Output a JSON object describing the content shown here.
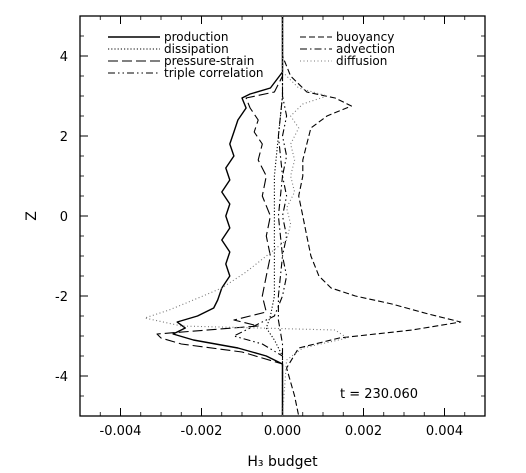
{
  "chart_data": {
    "type": "line",
    "xlabel": "H₃ budget",
    "ylabel": "Z",
    "xlim": [
      -0.005,
      0.005
    ],
    "ylim": [
      -5,
      5
    ],
    "xticks": [
      -0.004,
      -0.002,
      0.0,
      0.002,
      0.004
    ],
    "xtick_labels": [
      "-0.004",
      "-0.002",
      "0.000",
      "0.002",
      "0.004"
    ],
    "yticks": [
      -4,
      -2,
      0,
      2,
      4
    ],
    "ytick_labels": [
      "-4",
      "-2",
      "0",
      "2",
      "4"
    ],
    "annotation": "t = 230.060",
    "legend_placement": "top",
    "series": [
      {
        "name": "production",
        "style": "solid",
        "points": [
          [
            0.0,
            5.0
          ],
          [
            0.0,
            4.2
          ],
          [
            0.0,
            3.6
          ],
          [
            -0.0003,
            3.2
          ],
          [
            -0.0008,
            3.05
          ],
          [
            -0.001,
            2.95
          ],
          [
            -0.0009,
            2.7
          ],
          [
            -0.0011,
            2.4
          ],
          [
            -0.0012,
            2.1
          ],
          [
            -0.0013,
            1.8
          ],
          [
            -0.0012,
            1.5
          ],
          [
            -0.0014,
            1.2
          ],
          [
            -0.0013,
            0.9
          ],
          [
            -0.0015,
            0.6
          ],
          [
            -0.0013,
            0.3
          ],
          [
            -0.0014,
            0.0
          ],
          [
            -0.0013,
            -0.3
          ],
          [
            -0.0015,
            -0.6
          ],
          [
            -0.0013,
            -0.9
          ],
          [
            -0.0014,
            -1.2
          ],
          [
            -0.0013,
            -1.5
          ],
          [
            -0.0015,
            -1.8
          ],
          [
            -0.0016,
            -2.1
          ],
          [
            -0.0017,
            -2.3
          ],
          [
            -0.0021,
            -2.5
          ],
          [
            -0.0026,
            -2.65
          ],
          [
            -0.0024,
            -2.8
          ],
          [
            -0.0027,
            -2.95
          ],
          [
            -0.0022,
            -3.1
          ],
          [
            -0.0011,
            -3.3
          ],
          [
            -0.0004,
            -3.5
          ],
          [
            0.0,
            -3.7
          ],
          [
            0.0,
            -4.0
          ],
          [
            0.0,
            -5.0
          ]
        ]
      },
      {
        "name": "dissipation",
        "style": "dotted",
        "points": [
          [
            0.0,
            5.0
          ],
          [
            0.0,
            3.0
          ],
          [
            -0.0001,
            2.0
          ],
          [
            -0.0002,
            1.0
          ],
          [
            -0.0002,
            0.0
          ],
          [
            -0.0002,
            -1.0
          ],
          [
            -0.0002,
            -2.0
          ],
          [
            -0.0003,
            -2.5
          ],
          [
            -0.0004,
            -2.8
          ],
          [
            -0.0002,
            -3.1
          ],
          [
            0.0,
            -3.5
          ],
          [
            0.0,
            -5.0
          ]
        ]
      },
      {
        "name": "pressure-strain",
        "style": "longdash",
        "points": [
          [
            0.0,
            5.0
          ],
          [
            0.0,
            3.5
          ],
          [
            -0.0002,
            3.1
          ],
          [
            -0.0009,
            2.95
          ],
          [
            -0.0008,
            2.7
          ],
          [
            -0.0006,
            2.4
          ],
          [
            -0.0007,
            2.1
          ],
          [
            -0.0005,
            1.8
          ],
          [
            -0.0006,
            1.4
          ],
          [
            -0.0004,
            1.0
          ],
          [
            -0.0005,
            0.5
          ],
          [
            -0.0003,
            0.0
          ],
          [
            -0.0004,
            -0.5
          ],
          [
            -0.0003,
            -1.0
          ],
          [
            -0.0004,
            -1.5
          ],
          [
            -0.0005,
            -2.0
          ],
          [
            -0.0004,
            -2.4
          ],
          [
            -0.0012,
            -2.6
          ],
          [
            -0.0006,
            -2.75
          ],
          [
            -0.0031,
            -2.95
          ],
          [
            -0.003,
            -3.05
          ],
          [
            -0.0025,
            -3.2
          ],
          [
            -0.001,
            -3.4
          ],
          [
            0.0,
            -3.7
          ],
          [
            0.0,
            -5.0
          ]
        ]
      },
      {
        "name": "triple correlation",
        "style": "dashdotdot",
        "points": [
          [
            0.0,
            5.0
          ],
          [
            0.0,
            3.0
          ],
          [
            0.0001,
            2.5
          ],
          [
            0.0,
            2.0
          ],
          [
            0.0001,
            1.5
          ],
          [
            0.0,
            1.0
          ],
          [
            0.0001,
            0.5
          ],
          [
            0.0,
            0.0
          ],
          [
            0.0001,
            -0.5
          ],
          [
            0.0,
            -1.0
          ],
          [
            0.0001,
            -1.5
          ],
          [
            0.0,
            -2.0
          ],
          [
            -0.0002,
            -2.5
          ],
          [
            -0.0008,
            -2.8
          ],
          [
            -0.0012,
            -3.0
          ],
          [
            -0.0005,
            -3.2
          ],
          [
            0.0,
            -3.5
          ],
          [
            0.0,
            -5.0
          ]
        ]
      },
      {
        "name": "buoyancy",
        "style": "dashed",
        "points": [
          [
            0.0,
            5.0
          ],
          [
            0.0,
            4.0
          ],
          [
            0.0002,
            3.5
          ],
          [
            0.0006,
            3.1
          ],
          [
            0.0013,
            2.95
          ],
          [
            0.0017,
            2.75
          ],
          [
            0.0011,
            2.5
          ],
          [
            0.0007,
            2.2
          ],
          [
            0.0006,
            1.8
          ],
          [
            0.0005,
            1.4
          ],
          [
            0.0005,
            1.0
          ],
          [
            0.0004,
            0.5
          ],
          [
            0.0005,
            0.0
          ],
          [
            0.0006,
            -0.5
          ],
          [
            0.0007,
            -1.0
          ],
          [
            0.0009,
            -1.5
          ],
          [
            0.0012,
            -1.8
          ],
          [
            0.0018,
            -2.0
          ],
          [
            0.0027,
            -2.2
          ],
          [
            0.0036,
            -2.45
          ],
          [
            0.0044,
            -2.65
          ],
          [
            0.0032,
            -2.85
          ],
          [
            0.0014,
            -3.05
          ],
          [
            0.0004,
            -3.3
          ],
          [
            0.0001,
            -3.8
          ],
          [
            0.0003,
            -4.5
          ],
          [
            0.0004,
            -5.0
          ]
        ]
      },
      {
        "name": "advection",
        "style": "dashdot",
        "points": [
          [
            0.0,
            5.0
          ],
          [
            0.0,
            3.0
          ],
          [
            -0.0001,
            2.0
          ],
          [
            0.0,
            1.0
          ],
          [
            -0.0001,
            0.0
          ],
          [
            0.0,
            -1.0
          ],
          [
            -0.0001,
            -2.0
          ],
          [
            -0.0001,
            -2.6
          ],
          [
            0.0,
            -3.2
          ],
          [
            0.0,
            -5.0
          ]
        ]
      },
      {
        "name": "diffusion",
        "style": "sparsedot",
        "points": [
          [
            0.0,
            5.0
          ],
          [
            0.0,
            3.6
          ],
          [
            0.0004,
            3.2
          ],
          [
            0.0011,
            3.0
          ],
          [
            0.0005,
            2.8
          ],
          [
            0.0002,
            2.5
          ],
          [
            0.0004,
            2.2
          ],
          [
            0.0002,
            1.8
          ],
          [
            0.0003,
            1.4
          ],
          [
            0.0002,
            1.0
          ],
          [
            0.0003,
            0.6
          ],
          [
            0.0001,
            0.2
          ],
          [
            0.0002,
            -0.2
          ],
          [
            0.0001,
            -0.6
          ],
          [
            -0.0004,
            -1.0
          ],
          [
            -0.0009,
            -1.4
          ],
          [
            -0.0015,
            -1.8
          ],
          [
            -0.0022,
            -2.1
          ],
          [
            -0.0028,
            -2.35
          ],
          [
            -0.0034,
            -2.55
          ],
          [
            -0.0025,
            -2.75
          ],
          [
            0.0013,
            -2.85
          ],
          [
            0.0016,
            -3.05
          ],
          [
            0.0005,
            -3.3
          ],
          [
            0.0001,
            -3.6
          ],
          [
            0.0,
            -5.0
          ]
        ]
      }
    ]
  }
}
